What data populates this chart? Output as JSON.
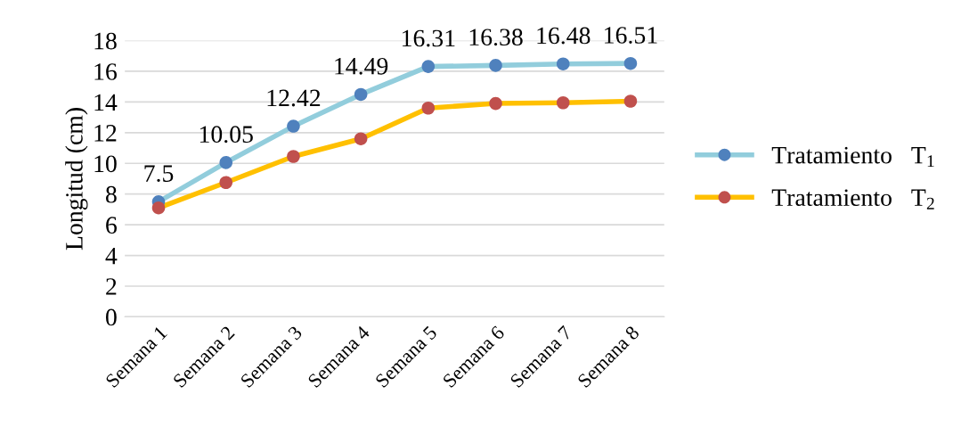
{
  "chart_data": {
    "type": "line",
    "ylabel": "Longitud (cm)",
    "categories": [
      "Semana 1",
      "Semana 2",
      "Semana 3",
      "Semana 4",
      "Semana 5",
      "Semana 6",
      "Semana 7",
      "Semana 8"
    ],
    "series": [
      {
        "name": "Tratamiento   T$_{1}$",
        "color": "#92cddc",
        "colors": [
          "#4f81bd",
          "#4f81bd",
          "#4f81bd",
          "#4f81bd",
          "#4f81bd",
          "#4f81bd",
          "#4f81bd",
          "#4f81bd"
        ],
        "values": [
          7.5,
          10.05,
          12.42,
          14.49,
          16.31,
          16.38,
          16.48,
          16.51
        ],
        "value_labels": [
          "7.5",
          "10.05",
          "12.42",
          "14.49",
          "16.31",
          "16.38",
          "16.48",
          "16.51"
        ]
      },
      {
        "name": "Tratamiento   T$_{2}$",
        "color": "#ffc000",
        "colors": [
          "#c0504d",
          "#c0504d",
          "#c0504d",
          "#c0504d",
          "#c0504d",
          "#c0504d",
          "#c0504d",
          "#c0504d"
        ],
        "values": [
          7.1,
          8.75,
          10.45,
          11.6,
          13.6,
          13.9,
          13.95,
          14.05
        ]
      }
    ],
    "ylim": [
      0,
      18
    ],
    "yticks": [
      0,
      2,
      4,
      6,
      8,
      10,
      12,
      14,
      16,
      18
    ],
    "grid": "y",
    "legend": "right",
    "marker": "circle",
    "line_style": "solid"
  }
}
